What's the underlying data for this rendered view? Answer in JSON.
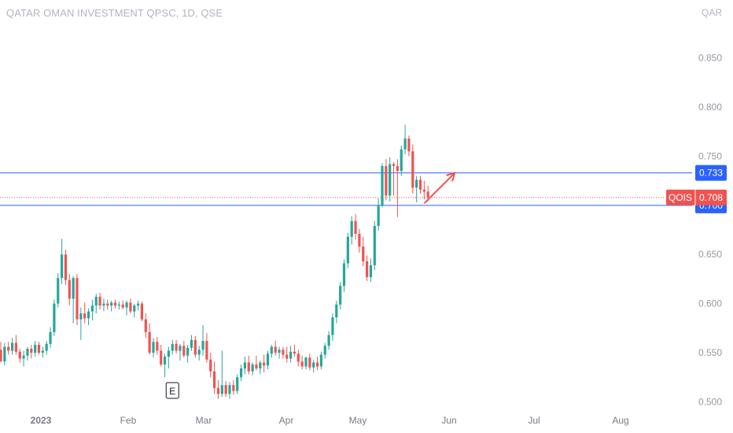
{
  "header": {
    "title": "QATAR OMAN INVESTMENT QPSC, 1D, QSE",
    "currency": "QAR"
  },
  "colors": {
    "up": "#26a69a",
    "down": "#ef5350",
    "level_line": "#2962ff",
    "price_tag": "#ef5350",
    "axis_text": "#9598a1"
  },
  "chart_data": {
    "type": "candlestick",
    "title": "QATAR OMAN INVESTMENT QPSC, 1D, QSE",
    "x_axis": {
      "ticks": [
        "2023",
        "Feb",
        "Mar",
        "Apr",
        "May",
        "Jun",
        "Jul",
        "Aug"
      ]
    },
    "y_axis": {
      "ticks": [
        "0.500",
        "0.550",
        "0.600",
        "0.650",
        "0.700",
        "0.750",
        "0.800",
        "0.850"
      ],
      "ylim": [
        0.4995,
        0.877
      ],
      "unit": "QAR"
    },
    "grid": false,
    "horizontal_lines": [
      {
        "value": 0.733,
        "label": "0.733"
      },
      {
        "value": 0.7,
        "label": "0.700"
      }
    ],
    "last_price": {
      "symbol": "QOIS",
      "value": 0.708,
      "label": "0.708"
    },
    "earnings_marker": {
      "label": "E",
      "date_index": 45
    },
    "arrow": {
      "from": {
        "index": 111,
        "price": 0.702
      },
      "to": {
        "index": 119,
        "price": 0.733
      }
    },
    "candles": [
      [
        0.553,
        0.561,
        0.541,
        0.541
      ],
      [
        0.541,
        0.56,
        0.537,
        0.556
      ],
      [
        0.556,
        0.561,
        0.548,
        0.552
      ],
      [
        0.552,
        0.565,
        0.548,
        0.56
      ],
      [
        0.56,
        0.568,
        0.548,
        0.551
      ],
      [
        0.551,
        0.554,
        0.54,
        0.544
      ],
      [
        0.544,
        0.552,
        0.536,
        0.547
      ],
      [
        0.547,
        0.556,
        0.542,
        0.554
      ],
      [
        0.554,
        0.558,
        0.544,
        0.55
      ],
      [
        0.55,
        0.562,
        0.546,
        0.558
      ],
      [
        0.558,
        0.561,
        0.548,
        0.55
      ],
      [
        0.55,
        0.556,
        0.545,
        0.552
      ],
      [
        0.552,
        0.562,
        0.548,
        0.559
      ],
      [
        0.559,
        0.576,
        0.555,
        0.571
      ],
      [
        0.571,
        0.604,
        0.567,
        0.6
      ],
      [
        0.6,
        0.631,
        0.596,
        0.626
      ],
      [
        0.626,
        0.666,
        0.62,
        0.65
      ],
      [
        0.65,
        0.655,
        0.619,
        0.624
      ],
      [
        0.624,
        0.63,
        0.598,
        0.605
      ],
      [
        0.605,
        0.628,
        0.58,
        0.626
      ],
      [
        0.626,
        0.63,
        0.578,
        0.584
      ],
      [
        0.584,
        0.596,
        0.563,
        0.59
      ],
      [
        0.59,
        0.601,
        0.58,
        0.585
      ],
      [
        0.585,
        0.595,
        0.578,
        0.592
      ],
      [
        0.592,
        0.604,
        0.583,
        0.598
      ],
      [
        0.598,
        0.61,
        0.59,
        0.607
      ],
      [
        0.607,
        0.611,
        0.594,
        0.598
      ],
      [
        0.598,
        0.605,
        0.592,
        0.6
      ],
      [
        0.6,
        0.604,
        0.594,
        0.598
      ],
      [
        0.598,
        0.603,
        0.592,
        0.601
      ],
      [
        0.601,
        0.604,
        0.595,
        0.598
      ],
      [
        0.598,
        0.602,
        0.594,
        0.599
      ],
      [
        0.599,
        0.603,
        0.594,
        0.596
      ],
      [
        0.596,
        0.603,
        0.588,
        0.601
      ],
      [
        0.601,
        0.605,
        0.59,
        0.592
      ],
      [
        0.592,
        0.6,
        0.586,
        0.598
      ],
      [
        0.598,
        0.603,
        0.593,
        0.6
      ],
      [
        0.6,
        0.602,
        0.582,
        0.584
      ],
      [
        0.584,
        0.59,
        0.565,
        0.571
      ],
      [
        0.571,
        0.58,
        0.548,
        0.55
      ],
      [
        0.55,
        0.565,
        0.545,
        0.561
      ],
      [
        0.561,
        0.566,
        0.548,
        0.552
      ],
      [
        0.552,
        0.558,
        0.536,
        0.538
      ],
      [
        0.538,
        0.549,
        0.525,
        0.546
      ],
      [
        0.546,
        0.556,
        0.534,
        0.552
      ],
      [
        0.552,
        0.563,
        0.548,
        0.559
      ],
      [
        0.559,
        0.563,
        0.549,
        0.552
      ],
      [
        0.552,
        0.559,
        0.542,
        0.557
      ],
      [
        0.557,
        0.562,
        0.545,
        0.547
      ],
      [
        0.547,
        0.558,
        0.54,
        0.555
      ],
      [
        0.555,
        0.568,
        0.552,
        0.563
      ],
      [
        0.563,
        0.567,
        0.545,
        0.548
      ],
      [
        0.548,
        0.557,
        0.542,
        0.553
      ],
      [
        0.553,
        0.578,
        0.547,
        0.562
      ],
      [
        0.562,
        0.57,
        0.54,
        0.543
      ],
      [
        0.543,
        0.55,
        0.525,
        0.531
      ],
      [
        0.531,
        0.541,
        0.508,
        0.514
      ],
      [
        0.514,
        0.522,
        0.503,
        0.508
      ],
      [
        0.508,
        0.552,
        0.505,
        0.517
      ],
      [
        0.517,
        0.521,
        0.505,
        0.508
      ],
      [
        0.508,
        0.52,
        0.503,
        0.517
      ],
      [
        0.517,
        0.522,
        0.507,
        0.511
      ],
      [
        0.511,
        0.528,
        0.508,
        0.525
      ],
      [
        0.525,
        0.538,
        0.521,
        0.534
      ],
      [
        0.534,
        0.546,
        0.528,
        0.54
      ],
      [
        0.54,
        0.547,
        0.528,
        0.531
      ],
      [
        0.531,
        0.54,
        0.527,
        0.538
      ],
      [
        0.538,
        0.547,
        0.532,
        0.534
      ],
      [
        0.534,
        0.542,
        0.528,
        0.54
      ],
      [
        0.54,
        0.548,
        0.53,
        0.537
      ],
      [
        0.537,
        0.552,
        0.533,
        0.549
      ],
      [
        0.549,
        0.558,
        0.545,
        0.556
      ],
      [
        0.556,
        0.562,
        0.547,
        0.55
      ],
      [
        0.55,
        0.556,
        0.544,
        0.553
      ],
      [
        0.553,
        0.556,
        0.544,
        0.548
      ],
      [
        0.548,
        0.556,
        0.54,
        0.544
      ],
      [
        0.544,
        0.557,
        0.54,
        0.551
      ],
      [
        0.551,
        0.558,
        0.546,
        0.549
      ],
      [
        0.549,
        0.553,
        0.536,
        0.541
      ],
      [
        0.541,
        0.547,
        0.533,
        0.536
      ],
      [
        0.536,
        0.546,
        0.533,
        0.545
      ],
      [
        0.545,
        0.549,
        0.532,
        0.535
      ],
      [
        0.535,
        0.543,
        0.53,
        0.54
      ],
      [
        0.54,
        0.546,
        0.532,
        0.536
      ],
      [
        0.536,
        0.551,
        0.533,
        0.548
      ],
      [
        0.548,
        0.56,
        0.544,
        0.557
      ],
      [
        0.557,
        0.572,
        0.553,
        0.568
      ],
      [
        0.568,
        0.59,
        0.562,
        0.586
      ],
      [
        0.586,
        0.603,
        0.58,
        0.599
      ],
      [
        0.599,
        0.622,
        0.594,
        0.618
      ],
      [
        0.618,
        0.645,
        0.612,
        0.641
      ],
      [
        0.641,
        0.672,
        0.636,
        0.668
      ],
      [
        0.668,
        0.689,
        0.66,
        0.684
      ],
      [
        0.684,
        0.691,
        0.665,
        0.671
      ],
      [
        0.671,
        0.676,
        0.652,
        0.658
      ],
      [
        0.658,
        0.668,
        0.638,
        0.643
      ],
      [
        0.643,
        0.649,
        0.623,
        0.627
      ],
      [
        0.627,
        0.646,
        0.622,
        0.639
      ],
      [
        0.639,
        0.684,
        0.634,
        0.679
      ],
      [
        0.679,
        0.707,
        0.674,
        0.7
      ],
      [
        0.7,
        0.743,
        0.698,
        0.74
      ],
      [
        0.74,
        0.747,
        0.705,
        0.71
      ],
      [
        0.71,
        0.749,
        0.704,
        0.742
      ],
      [
        0.742,
        0.744,
        0.71,
        0.74
      ],
      [
        0.74,
        0.747,
        0.688,
        0.735
      ],
      [
        0.735,
        0.761,
        0.73,
        0.757
      ],
      [
        0.757,
        0.782,
        0.752,
        0.768
      ],
      [
        0.768,
        0.771,
        0.75,
        0.755
      ],
      [
        0.755,
        0.762,
        0.712,
        0.718
      ],
      [
        0.718,
        0.73,
        0.703,
        0.726
      ],
      [
        0.726,
        0.73,
        0.712,
        0.716
      ],
      [
        0.716,
        0.725,
        0.706,
        0.714
      ],
      [
        0.714,
        0.72,
        0.704,
        0.708
      ]
    ]
  }
}
